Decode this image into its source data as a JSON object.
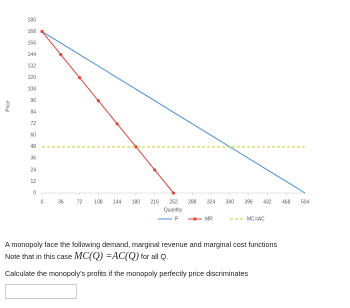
{
  "chart_data": {
    "type": "line",
    "x_label": "Quantity",
    "y_label": "Price",
    "x": [
      0,
      36,
      72,
      108,
      144,
      180,
      216,
      252,
      288,
      324,
      360,
      396,
      432,
      468,
      504
    ],
    "series": [
      {
        "name": "P",
        "color": "#4a8fd6",
        "dash": false,
        "markers": false,
        "values": [
          168,
          156,
          144,
          132,
          120,
          108,
          96,
          84,
          72,
          60,
          48,
          36,
          24,
          12,
          0
        ]
      },
      {
        "name": "MR",
        "color": "#e0443c",
        "dash": false,
        "markers": true,
        "values": [
          168,
          144,
          120,
          96,
          72,
          48,
          24,
          0,
          null,
          null,
          null,
          null,
          null,
          null,
          null
        ]
      },
      {
        "name": "MC=AC",
        "color": "#c9c93a",
        "dash": true,
        "markers": false,
        "values": [
          48,
          48,
          48,
          48,
          48,
          48,
          48,
          48,
          48,
          48,
          48,
          48,
          48,
          48,
          48
        ]
      }
    ],
    "xlim": [
      0,
      504
    ],
    "xticks": [
      0,
      36,
      72,
      108,
      144,
      180,
      216,
      252,
      288,
      324,
      360,
      396,
      432,
      468,
      504
    ],
    "ylim": [
      0,
      180
    ],
    "yticks": [
      0,
      12,
      24,
      36,
      48,
      60,
      72,
      84,
      96,
      108,
      120,
      132,
      144,
      156,
      168,
      180
    ],
    "grid": false,
    "legend": "bottom"
  },
  "question": {
    "line1": "A monopoly face the following demand, marginal revenue and marginal cost functions",
    "note_prefix": "Note that in this case",
    "note_formula": "MC(Q) =AC(Q)",
    "note_suffix": "for all Q.",
    "line3": "Calculate the monopoly's profits if the monopoly perfectly price discriminates"
  }
}
